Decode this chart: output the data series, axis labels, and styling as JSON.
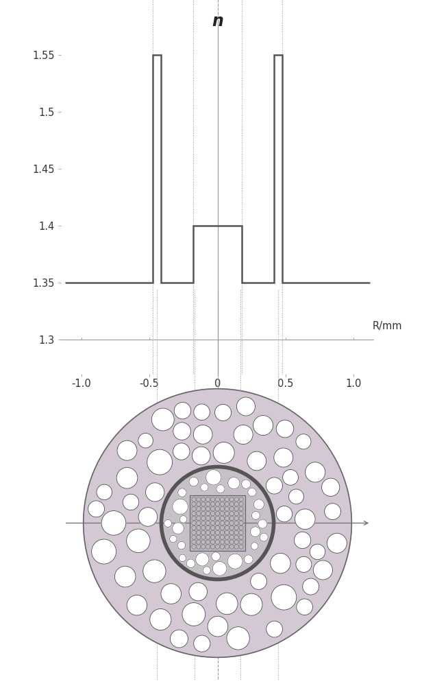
{
  "bg_color": "#ffffff",
  "profile_color": "#555555",
  "n_label": "n",
  "xlabel": "R/mm",
  "yticks": [
    1.3,
    1.35,
    1.4,
    1.45,
    1.5,
    1.55
  ],
  "xticks": [
    -1.0,
    -0.5,
    0,
    0.5,
    1.0
  ],
  "profile_ylim": [
    1.27,
    1.58
  ],
  "profile_xlim": [
    -1.15,
    1.15
  ],
  "outer_bg_color": "#d4c8d4",
  "inner_bg_color": "#c8c0c8",
  "core_bg_color": "#b8b0bc",
  "hole_fill": "#ffffff",
  "hole_edge": "#555555",
  "small_hole_fill": "#c0b8c0",
  "small_hole_edge": "#666666",
  "ring_edge_color": "#555555",
  "outer_edge_color": "#666666",
  "axis_line_color": "#999999",
  "vline_color": "#888888"
}
